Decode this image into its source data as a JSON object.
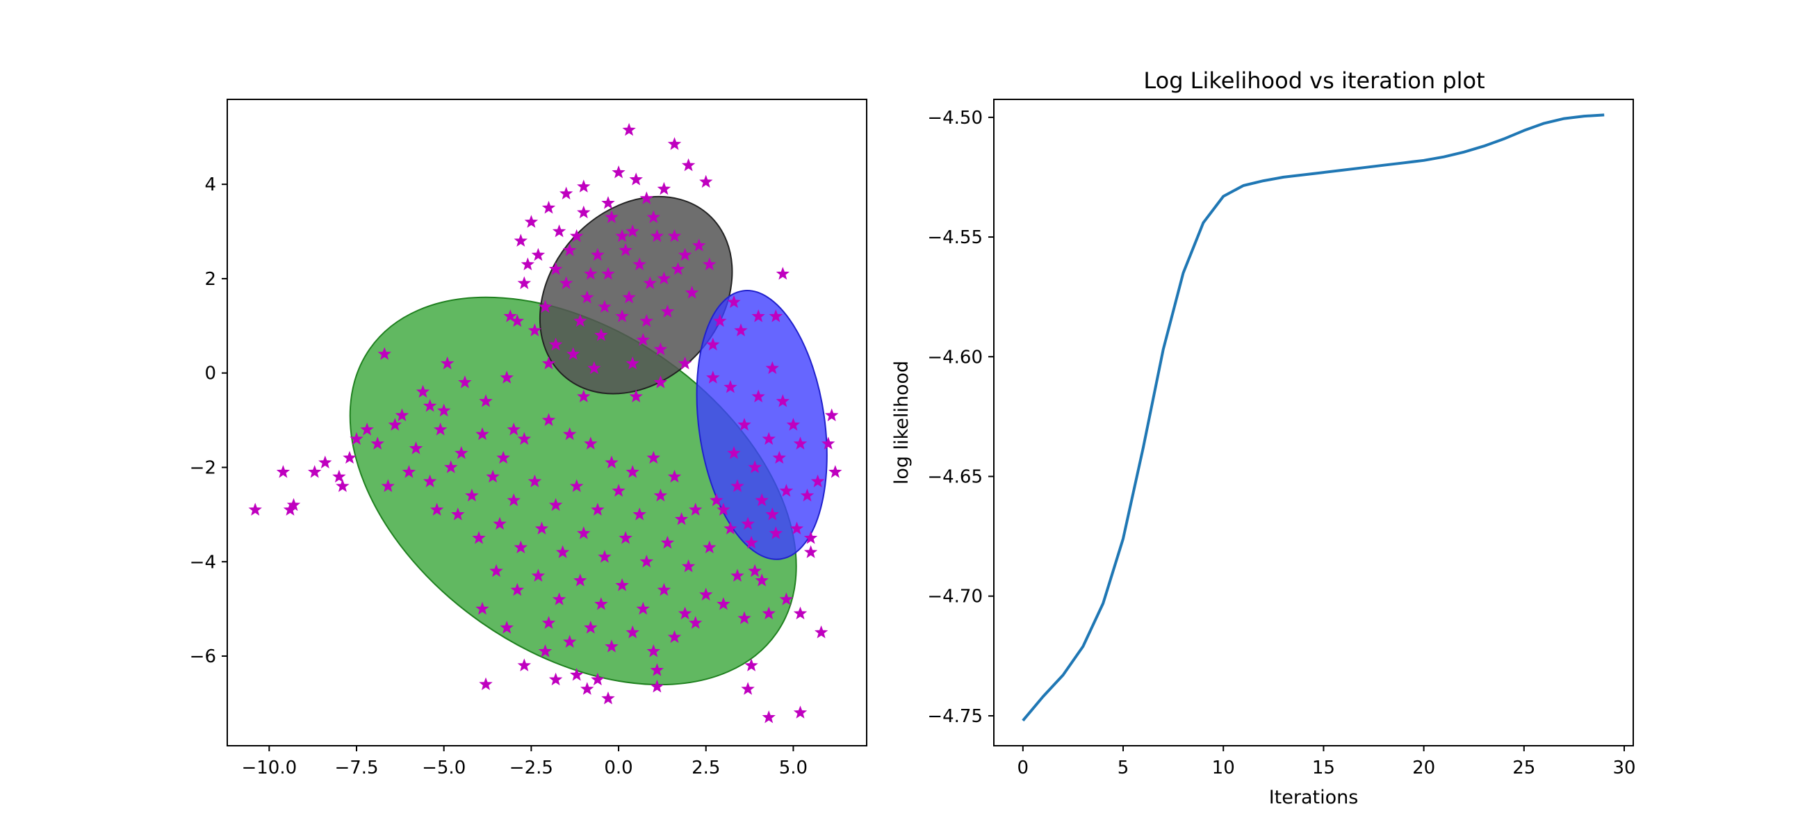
{
  "chart_data": [
    {
      "type": "scatter",
      "title": "",
      "xlabel": "",
      "ylabel": "",
      "xlim": [
        -11.2,
        7.1
      ],
      "ylim": [
        -7.9,
        5.8
      ],
      "xticks": [
        -10.0,
        -7.5,
        -5.0,
        -2.5,
        0.0,
        2.5,
        5.0
      ],
      "yticks": [
        -6,
        -4,
        -2,
        0,
        2,
        4
      ],
      "xtick_labels": [
        "−10.0",
        "−7.5",
        "−5.0",
        "−2.5",
        "0.0",
        "2.5",
        "5.0"
      ],
      "ytick_labels": [
        "−6",
        "−4",
        "−2",
        "0",
        "2",
        "4"
      ],
      "marker": "star",
      "marker_color": "#bf00bf",
      "components": [
        {
          "cx": -1.3,
          "cy": -2.5,
          "rx": 7.1,
          "ry": 3.4,
          "angle_deg": -35,
          "color": "#2ca02c",
          "edge": "#1f801f",
          "alpha": 0.75
        },
        {
          "cx": 0.5,
          "cy": 1.65,
          "rx": 3.1,
          "ry": 1.8,
          "angle_deg": 48,
          "color": "#555555",
          "edge": "#222222",
          "alpha": 0.85
        },
        {
          "cx": 4.1,
          "cy": -1.1,
          "rx": 1.8,
          "ry": 2.87,
          "angle_deg": 8,
          "color": "#4040ff",
          "edge": "#2020cc",
          "alpha": 0.8
        }
      ],
      "points": [
        [
          0.3,
          5.15
        ],
        [
          1.6,
          4.85
        ],
        [
          2.0,
          4.4
        ],
        [
          2.5,
          4.05
        ],
        [
          -1.0,
          3.95
        ],
        [
          0.0,
          4.25
        ],
        [
          0.5,
          4.1
        ],
        [
          -1.5,
          3.8
        ],
        [
          -2.0,
          3.5
        ],
        [
          -2.5,
          3.2
        ],
        [
          1.3,
          3.9
        ],
        [
          -0.3,
          3.6
        ],
        [
          0.8,
          3.7
        ],
        [
          2.3,
          2.7
        ],
        [
          2.6,
          2.3
        ],
        [
          -2.8,
          2.8
        ],
        [
          -2.3,
          2.5
        ],
        [
          -1.8,
          2.2
        ],
        [
          -1.2,
          2.9
        ],
        [
          -0.6,
          2.5
        ],
        [
          0.1,
          2.9
        ],
        [
          0.6,
          2.3
        ],
        [
          1.1,
          2.9
        ],
        [
          1.7,
          2.2
        ],
        [
          2.1,
          1.7
        ],
        [
          -2.7,
          1.9
        ],
        [
          -2.1,
          1.4
        ],
        [
          -1.5,
          1.9
        ],
        [
          -0.9,
          1.6
        ],
        [
          -0.3,
          2.1
        ],
        [
          0.3,
          1.6
        ],
        [
          0.9,
          1.9
        ],
        [
          1.4,
          1.3
        ],
        [
          -2.9,
          1.1
        ],
        [
          -2.4,
          0.9
        ],
        [
          -1.8,
          0.6
        ],
        [
          -1.1,
          1.1
        ],
        [
          -0.5,
          0.8
        ],
        [
          0.1,
          1.2
        ],
        [
          0.7,
          0.7
        ],
        [
          1.2,
          0.5
        ],
        [
          -3.1,
          1.2
        ],
        [
          -2.0,
          0.2
        ],
        [
          -1.3,
          0.4
        ],
        [
          -0.7,
          0.1
        ],
        [
          0.4,
          0.2
        ],
        [
          -0.2,
          3.3
        ],
        [
          0.4,
          3.0
        ],
        [
          1.0,
          3.3
        ],
        [
          1.6,
          2.9
        ],
        [
          -1.7,
          3.0
        ],
        [
          -1.0,
          3.4
        ],
        [
          -0.4,
          1.4
        ],
        [
          0.8,
          1.1
        ],
        [
          1.9,
          2.5
        ],
        [
          -2.6,
          2.3
        ],
        [
          -1.4,
          2.6
        ],
        [
          0.2,
          2.6
        ],
        [
          1.3,
          2.0
        ],
        [
          -0.8,
          2.1
        ],
        [
          3.3,
          1.5
        ],
        [
          2.9,
          1.1
        ],
        [
          4.7,
          2.1
        ],
        [
          4.5,
          1.2
        ],
        [
          2.7,
          0.6
        ],
        [
          1.9,
          0.2
        ],
        [
          1.2,
          -0.2
        ],
        [
          0.5,
          -0.5
        ],
        [
          -6.7,
          0.4
        ],
        [
          -5.6,
          -0.4
        ],
        [
          -5.0,
          -0.8
        ],
        [
          -4.4,
          -0.2
        ],
        [
          -3.8,
          -0.6
        ],
        [
          -3.2,
          -0.1
        ],
        [
          -6.4,
          -1.1
        ],
        [
          -5.8,
          -1.6
        ],
        [
          -5.1,
          -1.2
        ],
        [
          -4.5,
          -1.7
        ],
        [
          -3.9,
          -1.3
        ],
        [
          -3.3,
          -1.8
        ],
        [
          -2.7,
          -1.4
        ],
        [
          -7.2,
          -1.2
        ],
        [
          -7.7,
          -1.8
        ],
        [
          -8.0,
          -2.2
        ],
        [
          -8.4,
          -1.9
        ],
        [
          -7.9,
          -2.4
        ],
        [
          -8.7,
          -2.1
        ],
        [
          -9.3,
          -2.8
        ],
        [
          -9.6,
          -2.1
        ],
        [
          -9.4,
          -2.9
        ],
        [
          -10.4,
          -2.9
        ],
        [
          -6.6,
          -2.4
        ],
        [
          -6.0,
          -2.1
        ],
        [
          -5.4,
          -2.3
        ],
        [
          -4.8,
          -2.0
        ],
        [
          -4.2,
          -2.6
        ],
        [
          -3.6,
          -2.2
        ],
        [
          -3.0,
          -2.7
        ],
        [
          -2.4,
          -2.3
        ],
        [
          -1.8,
          -2.8
        ],
        [
          -1.2,
          -2.4
        ],
        [
          -0.6,
          -2.9
        ],
        [
          0.0,
          -2.5
        ],
        [
          0.6,
          -3.0
        ],
        [
          1.2,
          -2.6
        ],
        [
          1.8,
          -3.1
        ],
        [
          -4.6,
          -3.0
        ],
        [
          -4.0,
          -3.5
        ],
        [
          -3.4,
          -3.2
        ],
        [
          -2.8,
          -3.7
        ],
        [
          -2.2,
          -3.3
        ],
        [
          -1.6,
          -3.8
        ],
        [
          -1.0,
          -3.4
        ],
        [
          -0.4,
          -3.9
        ],
        [
          0.2,
          -3.5
        ],
        [
          0.8,
          -4.0
        ],
        [
          1.4,
          -3.6
        ],
        [
          2.0,
          -4.1
        ],
        [
          2.6,
          -3.7
        ],
        [
          -3.5,
          -4.2
        ],
        [
          -2.9,
          -4.6
        ],
        [
          -2.3,
          -4.3
        ],
        [
          -1.7,
          -4.8
        ],
        [
          -1.1,
          -4.4
        ],
        [
          -0.5,
          -4.9
        ],
        [
          0.1,
          -4.5
        ],
        [
          0.7,
          -5.0
        ],
        [
          1.3,
          -4.6
        ],
        [
          1.9,
          -5.1
        ],
        [
          2.5,
          -4.7
        ],
        [
          -2.0,
          -5.3
        ],
        [
          -1.4,
          -5.7
        ],
        [
          -0.8,
          -5.4
        ],
        [
          -0.2,
          -5.8
        ],
        [
          0.4,
          -5.5
        ],
        [
          1.0,
          -5.9
        ],
        [
          1.6,
          -5.6
        ],
        [
          2.2,
          -5.3
        ],
        [
          3.0,
          -4.9
        ],
        [
          -3.9,
          -5.0
        ],
        [
          -3.2,
          -5.4
        ],
        [
          -2.7,
          -6.2
        ],
        [
          -2.1,
          -5.9
        ],
        [
          -1.2,
          -6.4
        ],
        [
          -0.6,
          -6.5
        ],
        [
          -0.9,
          -6.7
        ],
        [
          -0.3,
          -6.9
        ],
        [
          1.1,
          -6.3
        ],
        [
          1.1,
          -6.65
        ],
        [
          -1.8,
          -6.5
        ],
        [
          -3.8,
          -6.6
        ],
        [
          3.8,
          -6.2
        ],
        [
          3.7,
          -6.7
        ],
        [
          4.3,
          -7.3
        ],
        [
          5.2,
          -7.2
        ],
        [
          5.8,
          -5.5
        ],
        [
          5.2,
          -5.1
        ],
        [
          4.8,
          -4.8
        ],
        [
          4.3,
          -5.1
        ],
        [
          3.6,
          -5.2
        ],
        [
          3.4,
          -4.3
        ],
        [
          -5.4,
          -0.7
        ],
        [
          -6.2,
          -0.9
        ],
        [
          -4.9,
          0.2
        ],
        [
          -2.0,
          -1.0
        ],
        [
          -1.4,
          -1.3
        ],
        [
          -0.8,
          -1.5
        ],
        [
          -0.2,
          -1.9
        ],
        [
          0.4,
          -2.1
        ],
        [
          1.0,
          -1.8
        ],
        [
          1.6,
          -2.2
        ],
        [
          2.2,
          -2.9
        ],
        [
          -7.5,
          -1.4
        ],
        [
          -6.9,
          -1.5
        ],
        [
          -5.2,
          -2.9
        ],
        [
          -3.0,
          -1.2
        ],
        [
          -1.0,
          -0.5
        ],
        [
          4.0,
          1.2
        ],
        [
          3.5,
          0.9
        ],
        [
          4.4,
          0.1
        ],
        [
          3.2,
          -0.3
        ],
        [
          4.0,
          -0.5
        ],
        [
          4.7,
          -0.6
        ],
        [
          3.6,
          -1.1
        ],
        [
          4.3,
          -1.4
        ],
        [
          5.0,
          -1.1
        ],
        [
          3.3,
          -1.7
        ],
        [
          3.9,
          -2.0
        ],
        [
          4.6,
          -1.8
        ],
        [
          5.2,
          -1.5
        ],
        [
          3.4,
          -2.4
        ],
        [
          4.1,
          -2.7
        ],
        [
          4.8,
          -2.5
        ],
        [
          3.7,
          -3.2
        ],
        [
          4.4,
          -3.0
        ],
        [
          5.1,
          -3.3
        ],
        [
          3.0,
          -2.9
        ],
        [
          5.4,
          -2.6
        ],
        [
          3.8,
          -3.6
        ],
        [
          4.5,
          -3.4
        ],
        [
          6.1,
          -0.9
        ],
        [
          6.0,
          -1.5
        ],
        [
          6.2,
          -2.1
        ],
        [
          5.7,
          -2.3
        ],
        [
          5.5,
          -3.5
        ],
        [
          5.5,
          -3.8
        ],
        [
          4.1,
          -4.4
        ],
        [
          2.8,
          -2.7
        ],
        [
          3.2,
          -3.3
        ],
        [
          3.9,
          -4.2
        ],
        [
          2.7,
          -0.1
        ]
      ]
    },
    {
      "type": "line",
      "title": "Log Likelihood vs iteration plot",
      "xlabel": "Iterations",
      "ylabel": "log likelihood",
      "xlim": [
        -1.45,
        30.45
      ],
      "ylim": [
        -4.7625,
        -4.4925
      ],
      "xticks": [
        0,
        5,
        10,
        15,
        20,
        25,
        30
      ],
      "yticks": [
        -4.75,
        -4.7,
        -4.65,
        -4.6,
        -4.55,
        -4.5
      ],
      "xtick_labels": [
        "0",
        "5",
        "10",
        "15",
        "20",
        "25",
        "30"
      ],
      "ytick_labels": [
        "−4.75",
        "−4.70",
        "−4.65",
        "−4.60",
        "−4.55",
        "−4.50"
      ],
      "line_color": "#1f77b4",
      "x": [
        0,
        1,
        2,
        3,
        4,
        5,
        6,
        7,
        8,
        9,
        10,
        11,
        12,
        13,
        14,
        15,
        16,
        17,
        18,
        19,
        20,
        21,
        22,
        23,
        24,
        25,
        26,
        27,
        28,
        29
      ],
      "y": [
        -4.752,
        -4.742,
        -4.733,
        -4.721,
        -4.703,
        -4.676,
        -4.638,
        -4.597,
        -4.565,
        -4.544,
        -4.533,
        -4.5285,
        -4.5265,
        -4.525,
        -4.524,
        -4.523,
        -4.522,
        -4.521,
        -4.52,
        -4.519,
        -4.518,
        -4.5165,
        -4.5145,
        -4.512,
        -4.509,
        -4.5055,
        -4.5025,
        -4.5005,
        -4.4995,
        -4.499
      ]
    }
  ]
}
